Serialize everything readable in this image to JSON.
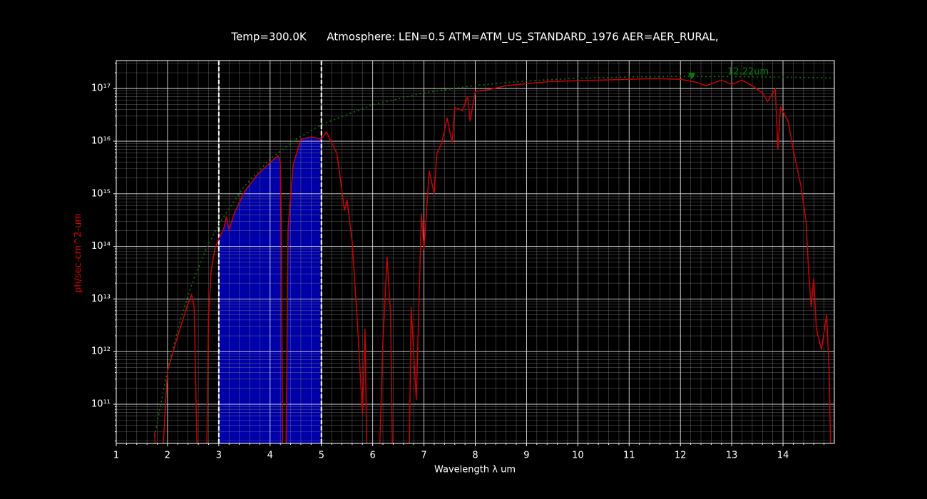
{
  "chart_data": {
    "type": "line",
    "title": "Temp=300.0K      Atmosphere: LEN=0.5 ATM=ATM_US_STANDARD_1976 AER=AER_RURAL,",
    "x_label": "Wavelength λ um",
    "y_label": "ph/sec-cm^2-um",
    "y_label_color": "#e00000",
    "log_y": true,
    "grid": true,
    "xlim": [
      1,
      15
    ],
    "ylim": [
      18000000000.0,
      3.4e+17
    ],
    "xticks": [
      1,
      2,
      3,
      4,
      5,
      6,
      7,
      8,
      9,
      10,
      11,
      12,
      13,
      14
    ],
    "yticks": [
      {
        "value": 100000000000.0,
        "label": "10¹¹"
      },
      {
        "value": 1000000000000.0,
        "label": "10¹²"
      },
      {
        "value": 10000000000000.0,
        "label": "10¹³"
      },
      {
        "value": 100000000000000.0,
        "label": "10¹⁴"
      },
      {
        "value": 1000000000000000.0,
        "label": "10¹⁵"
      },
      {
        "value": 1e+16,
        "label": "10¹⁶"
      },
      {
        "value": 1e+17,
        "label": "10¹⁷"
      }
    ],
    "xminorticks": [
      1.2,
      1.4,
      1.6,
      1.8,
      2.2,
      2.4,
      2.6,
      2.8,
      3.2,
      3.4,
      3.6,
      3.8,
      4.2,
      4.4,
      4.6,
      4.8,
      5.2,
      5.4,
      5.6,
      5.8,
      6.2,
      6.4,
      6.6,
      6.8,
      7.2,
      7.4,
      7.6,
      7.8,
      8.2,
      8.4,
      8.6,
      8.8,
      9.2,
      9.4,
      9.6,
      9.8,
      10.2,
      10.4,
      10.6,
      10.8,
      11.2,
      11.4,
      11.6,
      11.8,
      12.2,
      12.4,
      12.6,
      12.8,
      13.2,
      13.4,
      13.6,
      13.8,
      14.2,
      14.4,
      14.6,
      14.8
    ],
    "yminorticks": [
      20000000000.0,
      30000000000.0,
      40000000000.0,
      50000000000.0,
      60000000000.0,
      70000000000.0,
      80000000000.0,
      90000000000.0,
      200000000000.0,
      300000000000.0,
      400000000000.0,
      500000000000.0,
      600000000000.0,
      700000000000.0,
      800000000000.0,
      900000000000.0,
      2000000000000.0,
      3000000000000.0,
      4000000000000.0,
      5000000000000.0,
      6000000000000.0,
      7000000000000.0,
      8000000000000.0,
      9000000000000.0,
      20000000000000.0,
      30000000000000.0,
      40000000000000.0,
      50000000000000.0,
      60000000000000.0,
      70000000000000.0,
      80000000000000.0,
      90000000000000.0,
      200000000000000.0,
      300000000000000.0,
      400000000000000.0,
      500000000000000.0,
      600000000000000.0,
      700000000000000.0,
      800000000000000.0,
      900000000000000.0,
      2000000000000000.0,
      3000000000000000.0,
      4000000000000000.0,
      5000000000000000.0,
      6000000000000000.0,
      7000000000000000.0,
      8000000000000000.0,
      9000000000000000.0,
      2e+16,
      3e+16,
      4e+16,
      5e+16,
      6e+16,
      7e+16,
      8e+16,
      9e+16,
      2e+17,
      3e+17
    ],
    "vlines": [
      3,
      5
    ],
    "fill_range": [
      3,
      5
    ],
    "fill_color": "#0000a8",
    "series": [
      {
        "color": "#cc0000",
        "linestyle": "solid",
        "x": [
          1.75,
          1.8,
          1.92,
          2.0,
          2.2,
          2.4,
          2.47,
          2.52,
          2.6,
          2.75,
          2.8,
          2.85,
          2.92,
          3.0,
          3.1,
          3.15,
          3.2,
          3.3,
          3.5,
          3.75,
          4.0,
          4.15,
          4.2,
          4.22,
          4.25,
          4.3,
          4.35,
          4.45,
          4.6,
          4.8,
          5.0,
          5.1,
          5.2,
          5.3,
          5.35,
          5.45,
          5.5,
          5.6,
          5.7,
          5.8,
          5.85,
          5.9,
          6.1,
          6.2,
          6.28,
          6.35,
          6.4,
          6.7,
          6.75,
          6.85,
          6.95,
          7.0,
          7.1,
          7.2,
          7.25,
          7.35,
          7.45,
          7.55,
          7.6,
          7.75,
          7.85,
          7.9,
          8.0,
          8.3,
          8.6,
          9.0,
          9.5,
          10,
          11,
          11.5,
          12,
          12.3,
          12.5,
          12.8,
          13.0,
          13.2,
          13.4,
          13.6,
          13.7,
          13.85,
          13.9,
          13.95,
          14.1,
          14.2,
          14.35,
          14.45,
          14.5,
          14.55,
          14.6,
          14.65,
          14.75,
          14.85,
          14.9,
          14.95
        ],
        "values": [
          30000000000.0,
          1000000000.0,
          20000000000.0,
          430000000000.0,
          2000000000000.0,
          8300000000000.0,
          12000000000000.0,
          7000000000000.0,
          1000000000.0,
          1000000000.0,
          5000000000000.0,
          34000000000000.0,
          87000000000000.0,
          140000000000000.0,
          220000000000000.0,
          370000000000000.0,
          210000000000000.0,
          420000000000000.0,
          1100000000000000.0,
          2300000000000000.0,
          3900000000000000.0,
          5300000000000000.0,
          4000000000000000.0,
          220000000000000.0,
          1000000000.0,
          1000000000.0,
          220000000000000.0,
          3600000000000000.0,
          1.1e+16,
          1.2e+16,
          1.1e+16,
          1.5e+16,
          9300000000000000.0,
          5900000000000000.0,
          2700000000000000.0,
          480000000000000.0,
          770000000000000.0,
          120000000000000.0,
          3800000000000.0,
          65000000000.0,
          2700000000000.0,
          1000000000.0,
          1000000000.0,
          1500000000000.0,
          63000000000000.0,
          5000000000000.0,
          1000000000.0,
          1000000000.0,
          7000000000000.0,
          120000000000.0,
          420000000000000.0,
          87000000000000.0,
          2700000000000000.0,
          1000000000000000.0,
          5900000000000000.0,
          9300000000000000.0,
          2.8e+16,
          9300000000000000.0,
          4.4e+16,
          3.8e+16,
          7.1e+16,
          2.4e+16,
          8.8e+16,
          9.7e+16,
          1.13e+17,
          1.24e+17,
          1.37e+17,
          1.41e+17,
          1.5e+17,
          1.55e+17,
          1.5e+17,
          1.32e+17,
          1.13e+17,
          1.45e+17,
          1.2e+17,
          1.45e+17,
          1.13e+17,
          8.3e+16,
          5.7e+16,
          9.7e+16,
          6800000000000000.0,
          4.4e+16,
          2.4e+16,
          6800000000000000.0,
          1400000000000000.0,
          300000000000000.0,
          34000000000000.0,
          7000000000000.0,
          25000000000000.0,
          2700000000000.0,
          1100000000000.0,
          5000000000000.0,
          430000000000.0,
          1000000000.0
        ]
      },
      {
        "color": "#008000",
        "linestyle": "dotted",
        "x": [
          1.75,
          2,
          2.25,
          2.5,
          2.75,
          3,
          3.5,
          4,
          4.5,
          5,
          6,
          7,
          8,
          9,
          10,
          11,
          12,
          13,
          14,
          15
        ],
        "values": [
          25000000000.0,
          453000000000.0,
          4050000000000.0,
          22600000000000.0,
          87800000000000.0,
          264000000000000.0,
          1409000000000000.0,
          4570000000000000.0,
          1.078e+16,
          2.057e+16,
          4.91e+16,
          8.31e+16,
          1.149e+17,
          1.398e+17,
          1.57e+17,
          1.666e+17,
          1.7e+17,
          1.691e+17,
          1.648e+17,
          1.586e+17
        ]
      }
    ],
    "annotation": {
      "text": "12.22um",
      "x": 12.22,
      "y": 1.7e+17,
      "color": "#008000"
    }
  }
}
